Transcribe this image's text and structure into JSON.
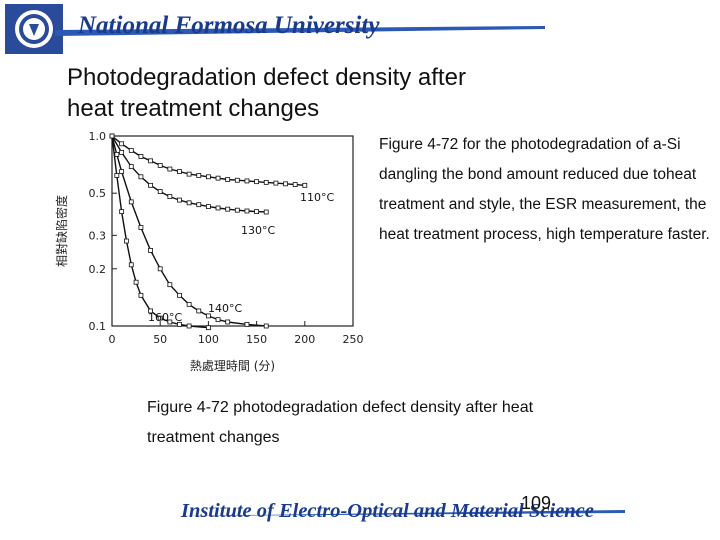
{
  "header": {
    "university": "National Formosa University"
  },
  "slide": {
    "title": "Photodegradation defect density after heat treatment changes",
    "description": "Figure 4-72 for the photodegradation of a-Si dangling the bond amount reduced due toheat treatment and style, the ESR measurement, the heat treatment process, high temperature faster.",
    "caption": "Figure 4-72 photodegradation defect density after heat treatment changes"
  },
  "footer": {
    "institute": "Institute of Electro-Optical and Material Science",
    "page": "109"
  },
  "colors": {
    "brand_blue": "#1a3a8c",
    "footer_bar": "#2b59b5"
  },
  "chart_data": {
    "type": "line",
    "xlabel": "熱處理時間 (分)",
    "ylabel": "相對缺陷密度",
    "x_ticks": [
      "0",
      "50",
      "100",
      "150",
      "200",
      "250"
    ],
    "y_ticks": [
      "0.1",
      "0.2",
      "0.3",
      "0.5",
      "1.0"
    ],
    "xlim": [
      0,
      250
    ],
    "ylim": [
      0.1,
      1.0
    ],
    "yscale": "log",
    "grid": false,
    "series": [
      {
        "name": "110°C",
        "x": [
          0,
          10,
          20,
          30,
          40,
          50,
          60,
          70,
          80,
          90,
          100,
          110,
          120,
          130,
          140,
          150,
          160,
          170,
          180,
          190,
          200
        ],
        "y": [
          1.0,
          0.91,
          0.84,
          0.78,
          0.74,
          0.7,
          0.67,
          0.65,
          0.63,
          0.62,
          0.61,
          0.6,
          0.59,
          0.585,
          0.58,
          0.575,
          0.57,
          0.565,
          0.56,
          0.555,
          0.55
        ]
      },
      {
        "name": "130°C",
        "x": [
          0,
          10,
          20,
          30,
          40,
          50,
          60,
          70,
          80,
          90,
          100,
          110,
          120,
          130,
          140,
          150,
          160
        ],
        "y": [
          1.0,
          0.82,
          0.69,
          0.61,
          0.55,
          0.51,
          0.48,
          0.46,
          0.445,
          0.435,
          0.425,
          0.418,
          0.412,
          0.407,
          0.403,
          0.4,
          0.398
        ]
      },
      {
        "name": "140°C",
        "x": [
          0,
          5,
          10,
          20,
          30,
          40,
          50,
          60,
          70,
          80,
          90,
          100,
          110,
          120,
          140,
          160
        ],
        "y": [
          1.0,
          0.8,
          0.65,
          0.45,
          0.33,
          0.25,
          0.2,
          0.165,
          0.145,
          0.13,
          0.12,
          0.113,
          0.108,
          0.105,
          0.102,
          0.1
        ]
      },
      {
        "name": "160°C",
        "x": [
          0,
          5,
          10,
          15,
          20,
          25,
          30,
          40,
          50,
          60,
          70,
          80,
          100
        ],
        "y": [
          1.0,
          0.62,
          0.4,
          0.28,
          0.21,
          0.17,
          0.145,
          0.12,
          0.11,
          0.105,
          0.102,
          0.1,
          0.098
        ]
      }
    ]
  }
}
